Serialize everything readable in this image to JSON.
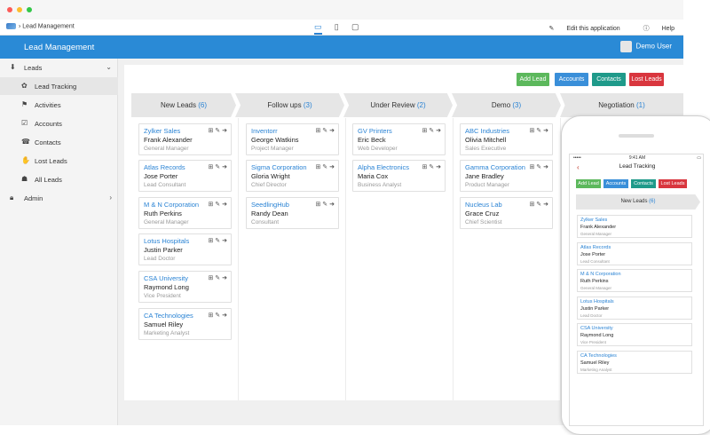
{
  "toolbar": {
    "app_name": "Lead Management",
    "edit_label": "Edit this application",
    "help_label": "Help",
    "devices": [
      "laptop-icon",
      "tablet-icon",
      "tablet-landscape-icon"
    ]
  },
  "header": {
    "title": "Lead Management",
    "user": "Demo User"
  },
  "sidebar": {
    "items": [
      {
        "label": "Leads",
        "icon": "leads-icon",
        "expanded": true
      },
      {
        "label": "Lead Tracking",
        "icon": "tracking-icon",
        "active": true
      },
      {
        "label": "Activities",
        "icon": "activities-icon"
      },
      {
        "label": "Accounts",
        "icon": "accounts-icon"
      },
      {
        "label": "Contacts",
        "icon": "contacts-icon"
      },
      {
        "label": "Lost Leads",
        "icon": "lost-leads-icon"
      },
      {
        "label": "All Leads",
        "icon": "all-leads-icon"
      },
      {
        "label": "Admin",
        "icon": "lock-icon"
      }
    ]
  },
  "actions": {
    "add_lead": "Add Lead",
    "accounts": "Accounts",
    "contacts": "Contacts",
    "lost_leads": "Lost Leads"
  },
  "colors": {
    "green": "#5cb85c",
    "blue": "#3a8fd9",
    "teal": "#1f9a8a",
    "red": "#d9363e",
    "header": "#2a8ad6"
  },
  "stages": [
    {
      "name": "New Leads",
      "count": "(6)"
    },
    {
      "name": "Follow ups",
      "count": "(3)"
    },
    {
      "name": "Under Review",
      "count": "(2)"
    },
    {
      "name": "Demo",
      "count": "(3)"
    },
    {
      "name": "Negotiation",
      "count": "(1)"
    }
  ],
  "columns": [
    [
      {
        "company": "Zylker Sales",
        "name": "Frank   Alexander",
        "role": "General Manager"
      },
      {
        "company": "Atlas Records",
        "name": "Jose   Porter",
        "role": "Lead Consultant"
      },
      {
        "company": "M & N Corporation",
        "name": "Ruth   Perkins",
        "role": "General Manager"
      },
      {
        "company": "Lotus Hospitals",
        "name": "Justin   Parker",
        "role": "Lead Doctor"
      },
      {
        "company": "CSA University",
        "name": "Raymond   Long",
        "role": "Vice President"
      },
      {
        "company": "CA Technologies",
        "name": "Samuel   Riley",
        "role": "Marketing Analyst"
      }
    ],
    [
      {
        "company": "Inventorr",
        "name": "George   Watkins",
        "role": "Project Manager"
      },
      {
        "company": "Sigma Corporation",
        "name": "Gloria Wright",
        "role": "Chief Director"
      },
      {
        "company": "SeedlingHub",
        "name": "Randy Dean",
        "role": "Consultant"
      }
    ],
    [
      {
        "company": "GV Printers",
        "name": "Eric   Beck",
        "role": "Web Developer"
      },
      {
        "company": "Alpha Electronics",
        "name": "Maria   Cox",
        "role": "Business Analyst"
      }
    ],
    [
      {
        "company": "ABC Industries",
        "name": "Olivia   Mitchell",
        "role": "Sales Executive"
      },
      {
        "company": "Gamma Corporation",
        "name": "Jane   Bradley",
        "role": "Product Manager"
      },
      {
        "company": "Nucleus Lab",
        "name": "Grace Cruz",
        "role": "Chief Scientist"
      }
    ]
  ],
  "phone": {
    "time": "9:41 AM",
    "title": "Lead Tracking",
    "stage": {
      "name": "New Leads",
      "count": "(6)"
    }
  }
}
